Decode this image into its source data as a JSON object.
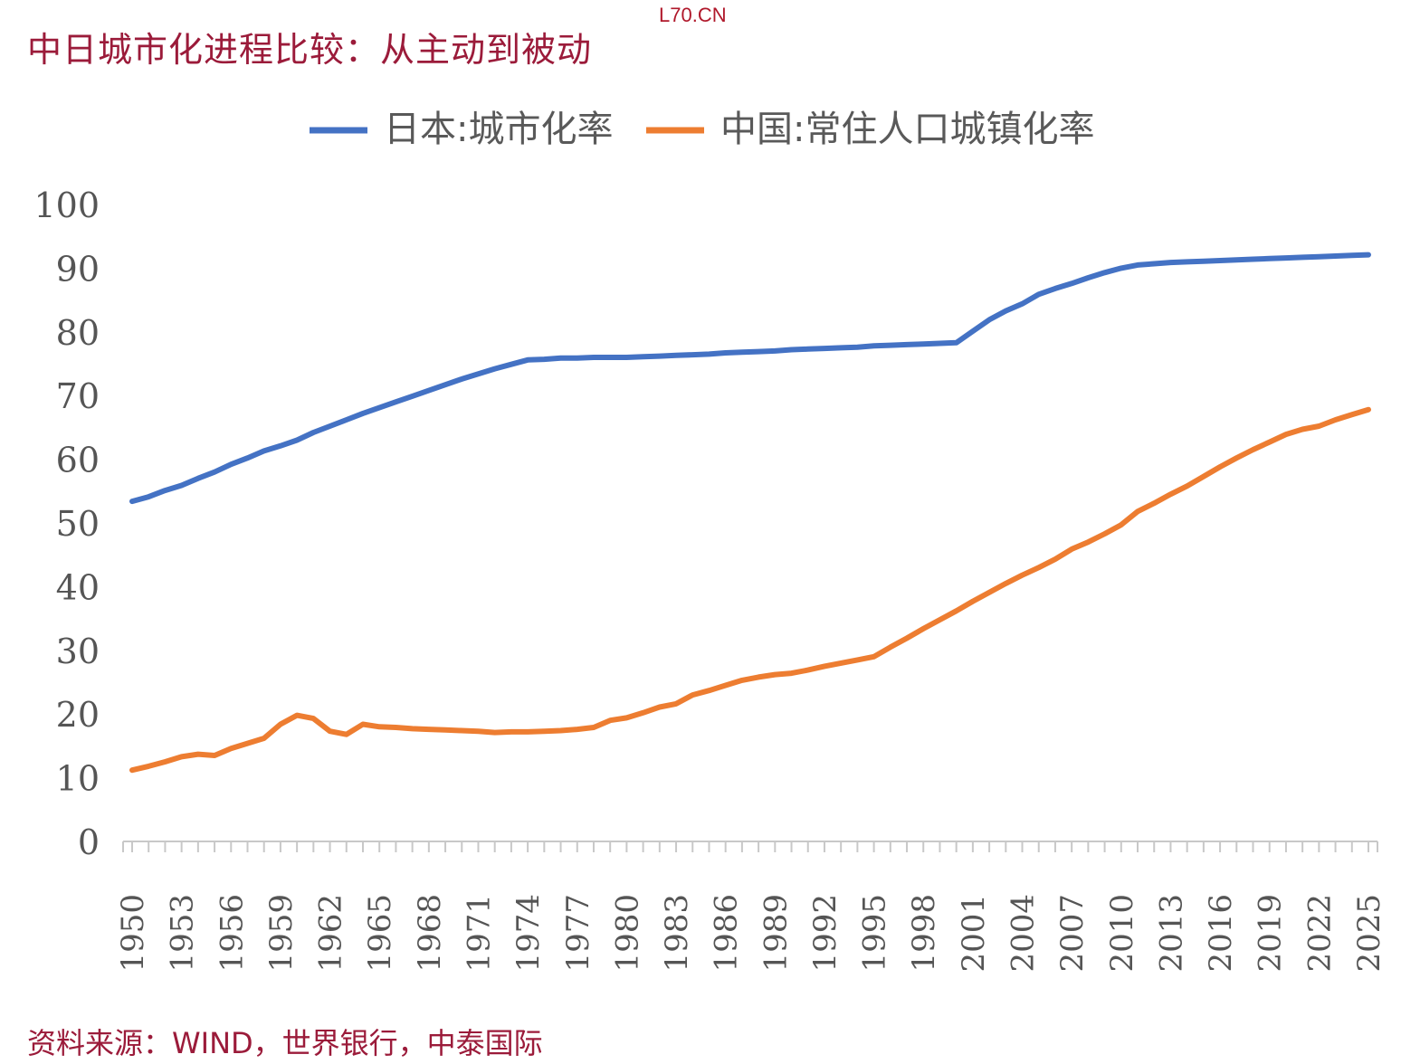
{
  "page": {
    "title": "中日城市化进程比较：从主动到被动",
    "watermark": "L70.CN",
    "source": "资料来源：WIND，世界银行，中泰国际"
  },
  "colors": {
    "japan": "#4472c4",
    "china": "#ed7d31",
    "title": "#9b1b3a"
  },
  "chart_data": {
    "type": "line",
    "title": "",
    "xlabel": "",
    "ylabel": "",
    "ylim": [
      0,
      100
    ],
    "yticks": [
      0,
      10,
      20,
      30,
      40,
      50,
      60,
      70,
      80,
      90,
      100
    ],
    "xlim": [
      1950,
      2025
    ],
    "xtick_labels": [
      "1950",
      "1953",
      "1956",
      "1959",
      "1962",
      "1965",
      "1968",
      "1971",
      "1974",
      "1977",
      "1980",
      "1983",
      "1986",
      "1989",
      "1992",
      "1995",
      "1998",
      "2001",
      "2004",
      "2007",
      "2010",
      "2013",
      "2016",
      "2019",
      "2022",
      "2025"
    ],
    "legend": {
      "position": "top",
      "entries": [
        "日本:城市化率",
        "中国:常住人口城镇化率"
      ]
    },
    "series": [
      {
        "name": "日本:城市化率",
        "color": "#4472c4",
        "x": [
          1950,
          1951,
          1952,
          1953,
          1954,
          1955,
          1956,
          1957,
          1958,
          1959,
          1960,
          1961,
          1962,
          1963,
          1964,
          1965,
          1966,
          1967,
          1968,
          1969,
          1970,
          1971,
          1972,
          1973,
          1974,
          1975,
          1976,
          1977,
          1978,
          1979,
          1980,
          1981,
          1982,
          1983,
          1984,
          1985,
          1986,
          1987,
          1988,
          1989,
          1990,
          1991,
          1992,
          1993,
          1994,
          1995,
          1996,
          1997,
          1998,
          1999,
          2000,
          2001,
          2002,
          2003,
          2004,
          2005,
          2006,
          2007,
          2008,
          2009,
          2010,
          2011,
          2012,
          2013,
          2014,
          2015,
          2016,
          2017,
          2018,
          2019,
          2020,
          2021,
          2022,
          2023,
          2024,
          2025
        ],
        "values": [
          53.4,
          54.1,
          55.1,
          55.9,
          57.0,
          58.0,
          59.2,
          60.2,
          61.3,
          62.1,
          63.0,
          64.2,
          65.2,
          66.2,
          67.2,
          68.1,
          69.0,
          69.9,
          70.8,
          71.7,
          72.6,
          73.4,
          74.2,
          74.9,
          75.6,
          75.7,
          75.9,
          75.9,
          76.0,
          76.0,
          76.0,
          76.1,
          76.2,
          76.3,
          76.4,
          76.5,
          76.7,
          76.8,
          76.9,
          77.0,
          77.2,
          77.3,
          77.4,
          77.5,
          77.6,
          77.8,
          77.9,
          78.0,
          78.1,
          78.2,
          78.3,
          80.1,
          81.9,
          83.3,
          84.4,
          85.9,
          86.8,
          87.6,
          88.5,
          89.3,
          90.0,
          90.5,
          90.7,
          90.9,
          91.0,
          91.1,
          91.2,
          91.3,
          91.4,
          91.5,
          91.6,
          91.7,
          91.8,
          91.9,
          92.0,
          92.1
        ]
      },
      {
        "name": "中国:常住人口城镇化率",
        "color": "#ed7d31",
        "x": [
          1950,
          1951,
          1952,
          1953,
          1954,
          1955,
          1956,
          1957,
          1958,
          1959,
          1960,
          1961,
          1962,
          1963,
          1964,
          1965,
          1966,
          1967,
          1968,
          1969,
          1970,
          1971,
          1972,
          1973,
          1974,
          1975,
          1976,
          1977,
          1978,
          1979,
          1980,
          1981,
          1982,
          1983,
          1984,
          1985,
          1986,
          1987,
          1988,
          1989,
          1990,
          1991,
          1992,
          1993,
          1994,
          1995,
          1996,
          1997,
          1998,
          1999,
          2000,
          2001,
          2002,
          2003,
          2004,
          2005,
          2006,
          2007,
          2008,
          2009,
          2010,
          2011,
          2012,
          2013,
          2014,
          2015,
          2016,
          2017,
          2018,
          2019,
          2020,
          2021,
          2022,
          2023,
          2024,
          2025
        ],
        "values": [
          11.2,
          11.8,
          12.5,
          13.3,
          13.7,
          13.5,
          14.6,
          15.4,
          16.2,
          18.4,
          19.8,
          19.3,
          17.3,
          16.8,
          18.4,
          18.0,
          17.9,
          17.7,
          17.6,
          17.5,
          17.4,
          17.3,
          17.1,
          17.2,
          17.2,
          17.3,
          17.4,
          17.6,
          17.9,
          19.0,
          19.4,
          20.2,
          21.1,
          21.6,
          23.0,
          23.7,
          24.5,
          25.3,
          25.8,
          26.2,
          26.4,
          26.9,
          27.5,
          28.0,
          28.5,
          29.0,
          30.5,
          31.9,
          33.4,
          34.8,
          36.2,
          37.7,
          39.1,
          40.5,
          41.8,
          43.0,
          44.3,
          45.9,
          47.0,
          48.3,
          49.7,
          51.8,
          53.1,
          54.5,
          55.8,
          57.3,
          58.8,
          60.2,
          61.5,
          62.7,
          63.9,
          64.7,
          65.2,
          66.2,
          67.0,
          67.8
        ]
      }
    ]
  }
}
